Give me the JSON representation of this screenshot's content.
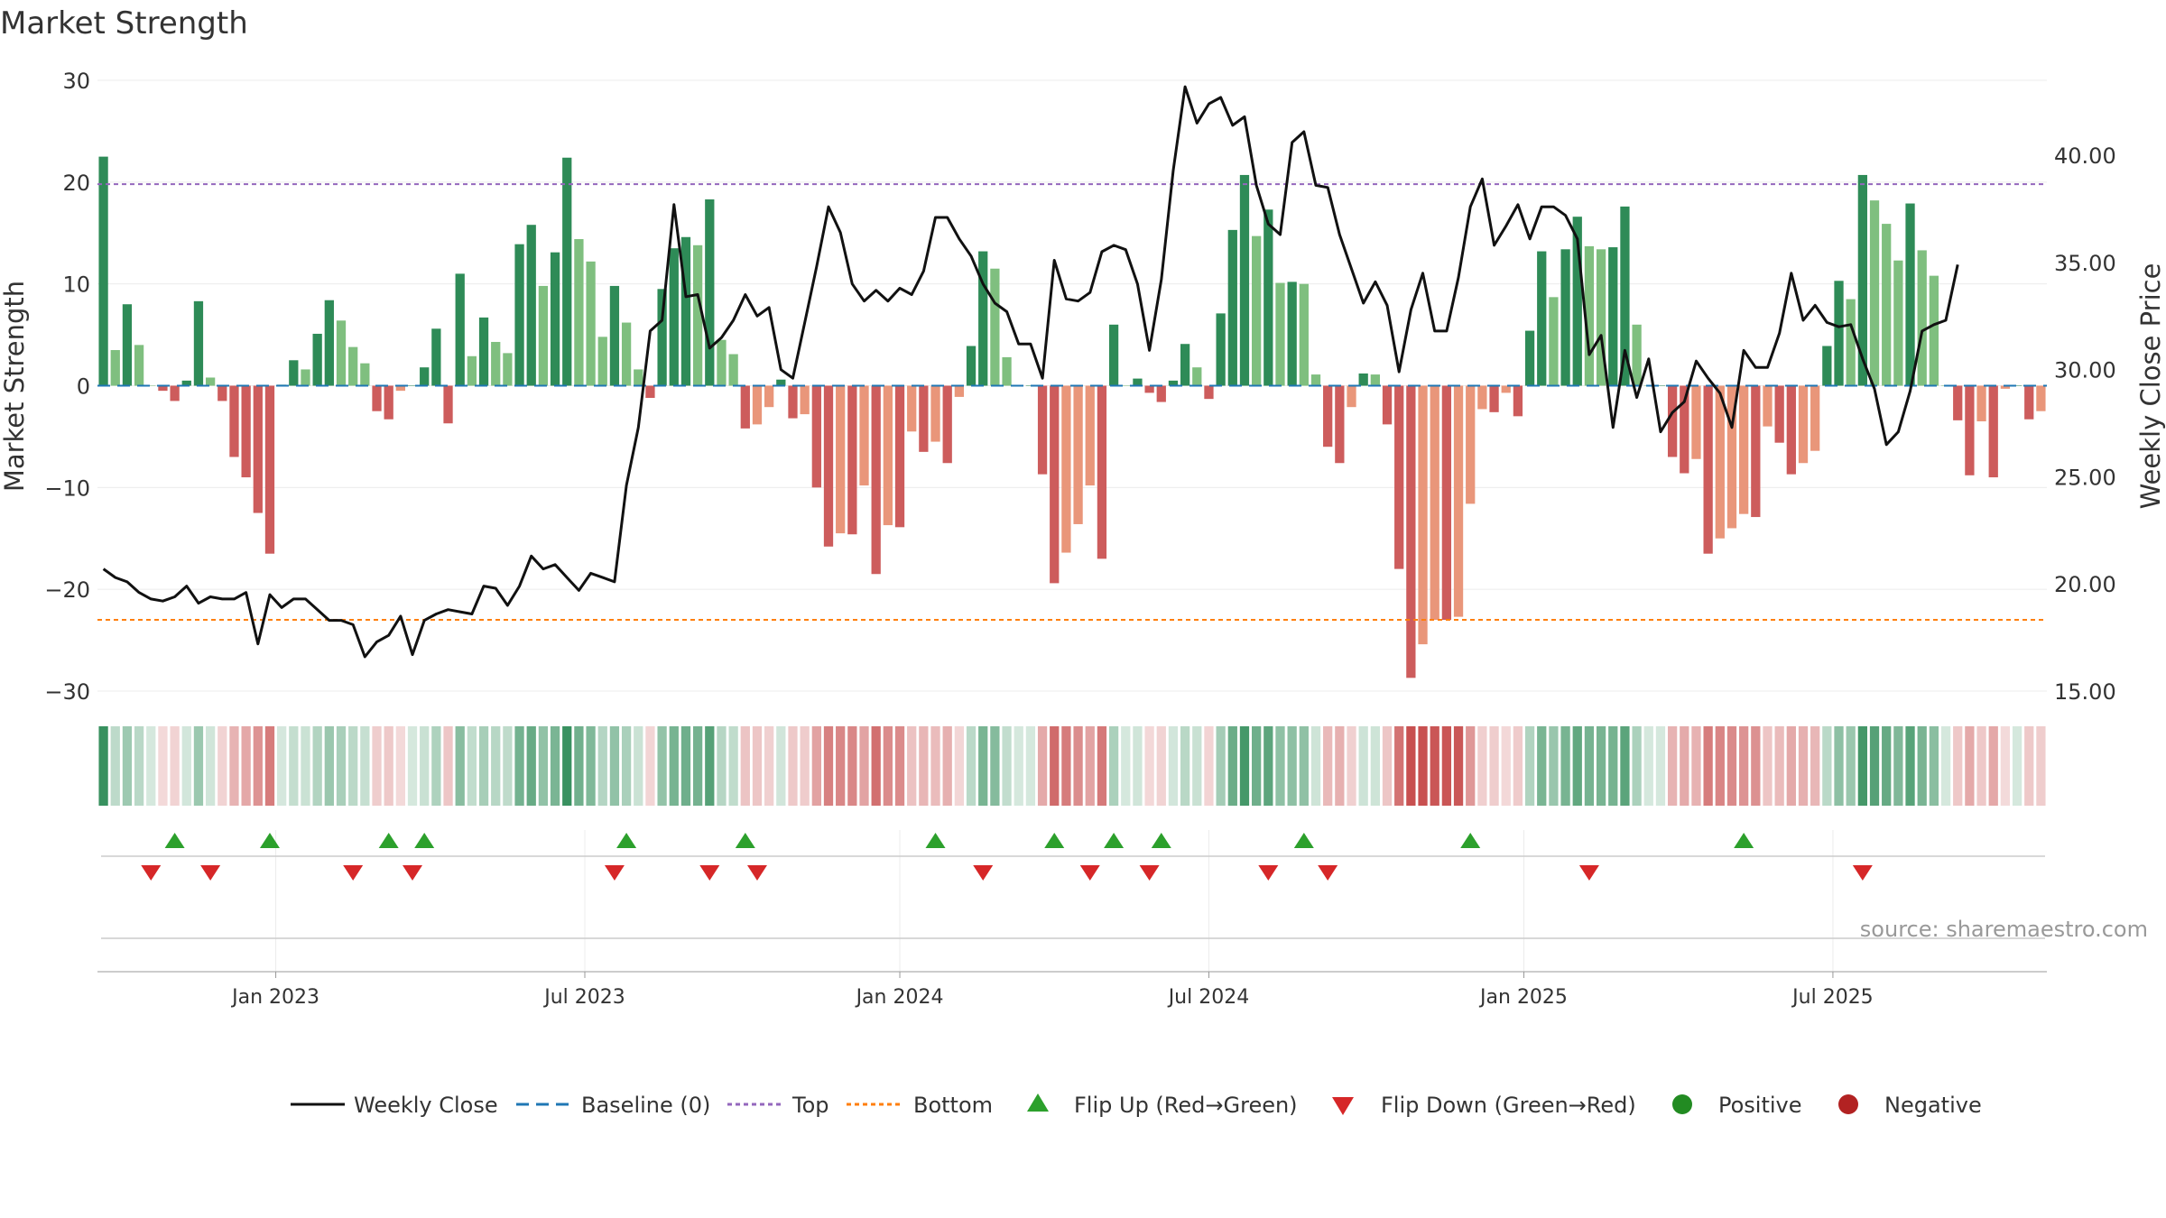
{
  "chart_data": {
    "type": "bar+line",
    "title": "Market Strength",
    "ylabel_left": "Market Strength",
    "ylabel_right": "Weekly Close Price",
    "source_note": "source: sharemaestro.com",
    "left_ylim": [
      -30,
      30
    ],
    "left_ticks": [
      30,
      20,
      10,
      0,
      -10,
      -20,
      -30
    ],
    "left_tick_labels": [
      "30",
      "20",
      "10",
      "0",
      "−10",
      "−20",
      "−30"
    ],
    "right_ylim": [
      15,
      43.5
    ],
    "right_ticks": [
      40,
      35,
      30,
      25,
      20,
      15
    ],
    "right_tick_labels": [
      "40.00",
      "35.00",
      "30.00",
      "25.00",
      "20.00",
      "15.00"
    ],
    "top_line": 19.8,
    "bottom_line": -23,
    "x_ticks": [
      {
        "label": "Jan 2023",
        "week": 15
      },
      {
        "label": "Jul 2023",
        "week": 41
      },
      {
        "label": "Jan 2024",
        "week": 67.5
      },
      {
        "label": "Jul 2024",
        "week": 93.5
      },
      {
        "label": "Jan 2025",
        "week": 120
      },
      {
        "label": "Jul 2025",
        "week": 146
      }
    ],
    "strength": [
      22.5,
      3.5,
      8,
      4,
      0,
      -0.5,
      -1.5,
      0.5,
      8.3,
      0.8,
      -1.5,
      -7,
      -9,
      -12.5,
      -16.5,
      0.1,
      2.5,
      1.6,
      5.1,
      8.4,
      6.4,
      3.8,
      2.2,
      -2.5,
      -3.3,
      -0.5,
      0,
      1.8,
      5.6,
      -3.7,
      11,
      2.9,
      6.7,
      4.3,
      3.2,
      13.9,
      15.8,
      9.8,
      13.1,
      22.4,
      14.4,
      12.2,
      4.8,
      9.8,
      6.2,
      1.6,
      -1.2,
      9.5,
      13.5,
      14.6,
      13.8,
      18.3,
      4.5,
      3.1,
      -4.2,
      -3.8,
      -2.1,
      0.6,
      -3.2,
      -2.8,
      -10,
      -15.8,
      -14.5,
      -14.6,
      -9.8,
      -18.5,
      -13.7,
      -13.9,
      -4.5,
      -6.5,
      -5.5,
      -7.6,
      -1.1,
      3.9,
      13.2,
      11.5,
      2.8,
      0,
      0,
      -8.7,
      -19.4,
      -16.4,
      -13.6,
      -9.8,
      -17,
      6,
      0,
      0.7,
      -0.7,
      -1.6,
      0.5,
      4.1,
      1.8,
      -1.3,
      7.1,
      15.3,
      20.7,
      14.7,
      17.3,
      10.1,
      10.2,
      10,
      1.1,
      -6,
      -7.6,
      -2.1,
      1.2,
      1.1,
      -3.8,
      -18,
      -28.7,
      -25.4,
      -23,
      -23,
      -22.7,
      -11.6,
      -2.3,
      -2.6,
      -0.7,
      -3,
      5.4,
      13.2,
      8.7,
      13.4,
      16.6,
      13.7,
      13.4,
      13.6,
      17.6,
      6,
      0,
      0,
      -7,
      -8.6,
      -7.2,
      -16.5,
      -15,
      -14,
      -12.6,
      -12.9,
      -4,
      -5.6,
      -8.7,
      -7.6,
      -6.4,
      3.9,
      10.3,
      8.5,
      20.7,
      18.2,
      15.9,
      12.3,
      17.9,
      13.3,
      10.8,
      0,
      -3.4,
      -8.8,
      -3.5,
      -9,
      -0.3,
      0,
      -3.3,
      -2.5
    ],
    "weekly_close": [
      20.7,
      20.3,
      20.1,
      19.6,
      19.3,
      19.2,
      19.4,
      19.9,
      19.1,
      19.4,
      19.3,
      19.3,
      19.6,
      17.2,
      19.5,
      18.9,
      19.3,
      19.3,
      18.8,
      18.3,
      18.3,
      18.1,
      16.6,
      17.3,
      17.6,
      18.5,
      16.7,
      18.3,
      18.6,
      18.8,
      18.7,
      18.6,
      19.9,
      19.8,
      19,
      19.9,
      21.3,
      20.7,
      20.9,
      20.3,
      19.7,
      20.5,
      20.3,
      20.1,
      24.6,
      27.3,
      31.8,
      32.3,
      37.7,
      33.4,
      33.5,
      31,
      31.5,
      32.3,
      33.5,
      32.5,
      32.9,
      30,
      29.6,
      32.2,
      34.8,
      37.6,
      36.4,
      34,
      33.2,
      33.7,
      33.2,
      33.8,
      33.5,
      34.6,
      37.1,
      37.1,
      36.1,
      35.3,
      34,
      33.1,
      32.7,
      31.2,
      31.2,
      29.6,
      35.1,
      33.3,
      33.2,
      33.6,
      35.5,
      35.8,
      35.6,
      34,
      30.9,
      34.2,
      39.3,
      43.2,
      41.5,
      42.4,
      42.7,
      41.4,
      41.8,
      38.6,
      36.8,
      36.3,
      40.6,
      41.1,
      38.6,
      38.5,
      36.3,
      34.7,
      33.1,
      34.1,
      33,
      29.9,
      32.8,
      34.5,
      31.8,
      31.8,
      34.3,
      37.6,
      38.9,
      35.8,
      36.7,
      37.7,
      36.1,
      37.6,
      37.6,
      37.2,
      36.1,
      30.7,
      31.6,
      27.3,
      30.9,
      28.7,
      30.5,
      27.1,
      28,
      28.5,
      30.4,
      29.6,
      28.9,
      27.3,
      30.9,
      30.1,
      30.1,
      31.7,
      34.5,
      32.3,
      33,
      32.2,
      32,
      32.1,
      30.5,
      29.1,
      26.5,
      27.1,
      29,
      31.8,
      32.1,
      32.3,
      34.9
    ],
    "flip_up_weeks": [
      6,
      14,
      24,
      27,
      44,
      54,
      70,
      80,
      85,
      89,
      101,
      115,
      138
    ],
    "flip_down_weeks": [
      4,
      9,
      21,
      26,
      43,
      51,
      55,
      74,
      83,
      88,
      98,
      103,
      125,
      148
    ],
    "legend": [
      "Weekly Close",
      "Baseline (0)",
      "Top",
      "Bottom",
      "Flip Up (Red→Green)",
      "Flip Down (Green→Red)",
      "Positive",
      "Negative"
    ],
    "colors": {
      "pos_dark": "#2e8b57",
      "pos_light": "#7fbf7f",
      "neg_dark": "#cd5c5c",
      "neg_light": "#e9967a",
      "line": "#111111",
      "baseline": "#1f77b4",
      "top": "#9467bd",
      "bottom": "#ff7f0e",
      "flip_up": "#2ca02c",
      "flip_down": "#d62728",
      "legend_positive": "#228b22",
      "legend_negative": "#b22222"
    }
  }
}
